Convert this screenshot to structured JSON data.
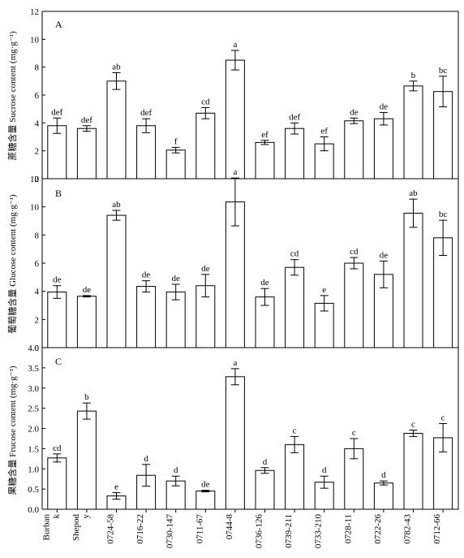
{
  "categories": [
    "Burbank",
    "Shepody",
    "0724-58",
    "0716-22",
    "0730-147",
    "0711-67",
    "0744-8",
    "0736-126",
    "0739-211",
    "0733-210",
    "0728-11",
    "0722-26",
    "0782-43",
    "0712-66"
  ],
  "category_labels": [
    [
      "Burban",
      "k"
    ],
    [
      "Shepod",
      "y"
    ],
    [
      "0724-58"
    ],
    [
      "0716-22"
    ],
    [
      "0730-147"
    ],
    [
      "0711-67"
    ],
    [
      "0744-8"
    ],
    [
      "0736-126"
    ],
    [
      "0739-211"
    ],
    [
      "0733-210"
    ],
    [
      "0728-11"
    ],
    [
      "0722-26"
    ],
    [
      "0782-43"
    ],
    [
      "0712-66"
    ]
  ],
  "chart_data": [
    {
      "type": "bar",
      "panel": "A",
      "ylabel": "蔗糖含量 Sucrose content (mg·g⁻¹)",
      "ylim": [
        0,
        12
      ],
      "yticks": [
        "0",
        "2",
        "4",
        "6",
        "8",
        "10",
        "12"
      ],
      "categories": [
        "Burbank",
        "Shepody",
        "0724-58",
        "0716-22",
        "0730-147",
        "0711-67",
        "0744-8",
        "0736-126",
        "0739-211",
        "0733-210",
        "0728-11",
        "0722-26",
        "0782-43",
        "0712-66"
      ],
      "values": [
        3.8,
        3.6,
        7.0,
        3.8,
        2.05,
        4.7,
        8.5,
        2.6,
        3.6,
        2.5,
        4.15,
        4.3,
        6.65,
        6.25
      ],
      "errors": [
        0.55,
        0.2,
        0.6,
        0.5,
        0.2,
        0.4,
        0.7,
        0.15,
        0.4,
        0.5,
        0.2,
        0.45,
        0.35,
        1.1
      ],
      "significance": [
        "def",
        "def",
        "ab",
        "def",
        "f",
        "cd",
        "a",
        "ef",
        "def",
        "ef",
        "de",
        "de",
        "b",
        "bc"
      ]
    },
    {
      "type": "bar",
      "panel": "B",
      "ylabel": "葡萄糖含量 Glucose content (mg·g⁻¹)",
      "ylim": [
        0,
        12
      ],
      "yticks": [
        "0",
        "2",
        "4",
        "6",
        "8",
        "10",
        "12"
      ],
      "categories": [
        "Burbank",
        "Shepody",
        "0724-58",
        "0716-22",
        "0730-147",
        "0711-67",
        "0744-8",
        "0736-126",
        "0739-211",
        "0733-210",
        "0728-11",
        "0722-26",
        "0782-43",
        "0712-66"
      ],
      "values": [
        3.95,
        3.65,
        9.4,
        4.35,
        3.95,
        4.4,
        10.35,
        3.6,
        5.7,
        3.15,
        6.0,
        5.2,
        9.55,
        7.8
      ],
      "errors": [
        0.45,
        0.05,
        0.35,
        0.4,
        0.55,
        0.8,
        1.7,
        0.6,
        0.55,
        0.55,
        0.4,
        0.95,
        1.0,
        1.25
      ],
      "significance": [
        "de",
        "de",
        "ab",
        "de",
        "de",
        "de",
        "a",
        "de",
        "cd",
        "e",
        "cd",
        "de",
        "ab",
        "bc"
      ]
    },
    {
      "type": "bar",
      "panel": "C",
      "ylabel": "果糖含量 Frucose content (mg·g⁻¹)",
      "ylim": [
        0,
        4.0
      ],
      "yticks": [
        "0.0",
        "0.5",
        "1.0",
        "1.5",
        "2.0",
        "2.5",
        "3.0",
        "3.5",
        "4.0"
      ],
      "categories": [
        "Burbank",
        "Shepody",
        "0724-58",
        "0716-22",
        "0730-147",
        "0711-67",
        "0744-8",
        "0736-126",
        "0739-211",
        "0733-210",
        "0728-11",
        "0722-26",
        "0782-43",
        "0712-66"
      ],
      "values": [
        1.27,
        2.43,
        0.33,
        0.84,
        0.7,
        0.45,
        3.28,
        0.96,
        1.6,
        0.67,
        1.5,
        0.65,
        1.88,
        1.77
      ],
      "errors": [
        0.1,
        0.2,
        0.08,
        0.27,
        0.12,
        0.02,
        0.2,
        0.07,
        0.2,
        0.15,
        0.25,
        0.05,
        0.08,
        0.35
      ],
      "significance": [
        "cd",
        "b",
        "e",
        "d",
        "d",
        "de",
        "a",
        "d",
        "c",
        "d",
        "c",
        "d",
        "c",
        "c"
      ]
    }
  ]
}
